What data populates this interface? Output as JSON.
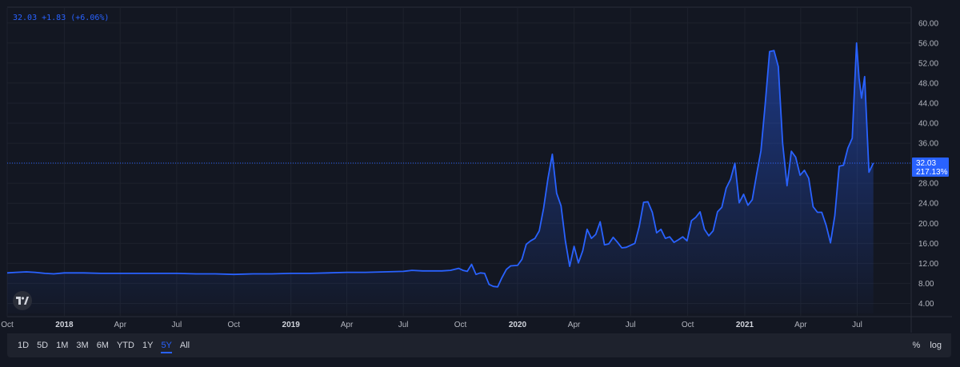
{
  "legend": {
    "text": "32.03 +1.83 (+6.06%)"
  },
  "price_tag": {
    "price": "32.03",
    "percent": "217.13%"
  },
  "colors": {
    "line": "#2962ff",
    "background": "#131722",
    "grid": "#1e222d",
    "tag": "#2962ff"
  },
  "toolbar": {
    "ranges": [
      "1D",
      "5D",
      "1M",
      "3M",
      "6M",
      "YTD",
      "1Y",
      "5Y",
      "All"
    ],
    "active_range": "5Y",
    "percent_label": "%",
    "log_label": "log"
  },
  "logo": {
    "icon": "tradingview-logo-icon"
  },
  "chart_data": {
    "type": "area",
    "y_axis": {
      "ticks": [
        4,
        8,
        12,
        16,
        20,
        24,
        28,
        32,
        36,
        40,
        44,
        48,
        52,
        56,
        60
      ],
      "tick_labels": [
        "4.00",
        "8.00",
        "12.00",
        "16.00",
        "20.00",
        "24.00",
        "28.00",
        "32.00",
        "36.00",
        "40.00",
        "44.00",
        "48.00",
        "52.00",
        "56.00",
        "60.00"
      ],
      "ylim": [
        2,
        63
      ]
    },
    "x_axis": {
      "tick_labels": [
        {
          "label": "Oct",
          "date": "2017-10-01",
          "bold": false
        },
        {
          "label": "2018",
          "date": "2018-01-01",
          "bold": true
        },
        {
          "label": "Apr",
          "date": "2018-04-01",
          "bold": false
        },
        {
          "label": "Jul",
          "date": "2018-07-01",
          "bold": false
        },
        {
          "label": "Oct",
          "date": "2018-10-01",
          "bold": false
        },
        {
          "label": "2019",
          "date": "2019-01-01",
          "bold": true
        },
        {
          "label": "Apr",
          "date": "2019-04-01",
          "bold": false
        },
        {
          "label": "Jul",
          "date": "2019-07-01",
          "bold": false
        },
        {
          "label": "Oct",
          "date": "2019-10-01",
          "bold": false
        },
        {
          "label": "2020",
          "date": "2020-01-01",
          "bold": true
        },
        {
          "label": "Apr",
          "date": "2020-04-01",
          "bold": false
        },
        {
          "label": "Jul",
          "date": "2020-07-01",
          "bold": false
        },
        {
          "label": "Oct",
          "date": "2020-10-01",
          "bold": false
        },
        {
          "label": "2021",
          "date": "2021-01-01",
          "bold": true
        },
        {
          "label": "Apr",
          "date": "2021-04-01",
          "bold": false
        },
        {
          "label": "Jul",
          "date": "2021-07-01",
          "bold": false
        }
      ],
      "xlim": [
        "2017-10-01",
        "2021-09-26"
      ]
    },
    "current_value": 32.03,
    "grid": true,
    "series": [
      {
        "points": [
          [
            "2017-10-01",
            10.1
          ],
          [
            "2017-10-15",
            10.2
          ],
          [
            "2017-11-01",
            10.3
          ],
          [
            "2017-11-15",
            10.2
          ],
          [
            "2017-12-01",
            10.0
          ],
          [
            "2017-12-15",
            9.9
          ],
          [
            "2018-01-01",
            10.1
          ],
          [
            "2018-02-01",
            10.1
          ],
          [
            "2018-03-01",
            10.0
          ],
          [
            "2018-04-01",
            10.0
          ],
          [
            "2018-05-01",
            10.0
          ],
          [
            "2018-06-01",
            10.0
          ],
          [
            "2018-07-01",
            10.0
          ],
          [
            "2018-08-01",
            9.9
          ],
          [
            "2018-09-01",
            9.9
          ],
          [
            "2018-10-01",
            9.8
          ],
          [
            "2018-11-01",
            9.9
          ],
          [
            "2018-12-01",
            9.9
          ],
          [
            "2019-01-01",
            10.0
          ],
          [
            "2019-02-01",
            10.0
          ],
          [
            "2019-03-01",
            10.1
          ],
          [
            "2019-04-01",
            10.2
          ],
          [
            "2019-05-01",
            10.2
          ],
          [
            "2019-06-01",
            10.3
          ],
          [
            "2019-07-01",
            10.4
          ],
          [
            "2019-07-15",
            10.6
          ],
          [
            "2019-08-01",
            10.5
          ],
          [
            "2019-09-01",
            10.5
          ],
          [
            "2019-09-15",
            10.6
          ],
          [
            "2019-09-28",
            11.0
          ],
          [
            "2019-10-05",
            10.6
          ],
          [
            "2019-10-12",
            10.4
          ],
          [
            "2019-10-19",
            11.8
          ],
          [
            "2019-10-26",
            9.8
          ],
          [
            "2019-11-02",
            10.1
          ],
          [
            "2019-11-09",
            10.0
          ],
          [
            "2019-11-16",
            7.8
          ],
          [
            "2019-11-23",
            7.4
          ],
          [
            "2019-11-30",
            7.3
          ],
          [
            "2019-12-07",
            9.2
          ],
          [
            "2019-12-14",
            10.8
          ],
          [
            "2019-12-21",
            11.5
          ],
          [
            "2020-01-01",
            11.6
          ],
          [
            "2020-01-08",
            12.8
          ],
          [
            "2020-01-15",
            15.8
          ],
          [
            "2020-01-22",
            16.5
          ],
          [
            "2020-01-29",
            17.0
          ],
          [
            "2020-02-05",
            18.5
          ],
          [
            "2020-02-12",
            23.0
          ],
          [
            "2020-02-19",
            29.0
          ],
          [
            "2020-02-26",
            33.8
          ],
          [
            "2020-03-04",
            26.0
          ],
          [
            "2020-03-11",
            23.5
          ],
          [
            "2020-03-18",
            16.5
          ],
          [
            "2020-03-25",
            11.4
          ],
          [
            "2020-04-01",
            15.4
          ],
          [
            "2020-04-08",
            12.1
          ],
          [
            "2020-04-15",
            14.5
          ],
          [
            "2020-04-22",
            18.8
          ],
          [
            "2020-04-29",
            17.0
          ],
          [
            "2020-05-06",
            17.8
          ],
          [
            "2020-05-13",
            20.3
          ],
          [
            "2020-05-20",
            15.7
          ],
          [
            "2020-05-27",
            15.9
          ],
          [
            "2020-06-03",
            17.2
          ],
          [
            "2020-06-10",
            16.2
          ],
          [
            "2020-06-17",
            15.1
          ],
          [
            "2020-06-24",
            15.2
          ],
          [
            "2020-07-01",
            15.6
          ],
          [
            "2020-07-08",
            16.0
          ],
          [
            "2020-07-15",
            19.4
          ],
          [
            "2020-07-22",
            24.2
          ],
          [
            "2020-07-29",
            24.3
          ],
          [
            "2020-08-05",
            22.2
          ],
          [
            "2020-08-12",
            18.1
          ],
          [
            "2020-08-19",
            18.8
          ],
          [
            "2020-08-26",
            17.0
          ],
          [
            "2020-09-02",
            17.3
          ],
          [
            "2020-09-09",
            16.2
          ],
          [
            "2020-09-16",
            16.7
          ],
          [
            "2020-09-23",
            17.3
          ],
          [
            "2020-09-30",
            16.5
          ],
          [
            "2020-10-07",
            20.5
          ],
          [
            "2020-10-14",
            21.2
          ],
          [
            "2020-10-21",
            22.3
          ],
          [
            "2020-10-28",
            18.8
          ],
          [
            "2020-11-04",
            17.5
          ],
          [
            "2020-11-11",
            18.5
          ],
          [
            "2020-11-18",
            22.3
          ],
          [
            "2020-11-25",
            23.2
          ],
          [
            "2020-12-02",
            27.0
          ],
          [
            "2020-12-09",
            28.8
          ],
          [
            "2020-12-16",
            32.0
          ],
          [
            "2020-12-23",
            24.1
          ],
          [
            "2020-12-30",
            25.8
          ],
          [
            "2021-01-06",
            23.6
          ],
          [
            "2021-01-13",
            24.7
          ],
          [
            "2021-01-20",
            29.8
          ],
          [
            "2021-01-27",
            34.5
          ],
          [
            "2021-02-03",
            44.0
          ],
          [
            "2021-02-10",
            54.3
          ],
          [
            "2021-02-17",
            54.5
          ],
          [
            "2021-02-24",
            51.3
          ],
          [
            "2021-03-03",
            36.0
          ],
          [
            "2021-03-10",
            27.5
          ],
          [
            "2021-03-17",
            34.4
          ],
          [
            "2021-03-24",
            33.2
          ],
          [
            "2021-03-31",
            29.6
          ],
          [
            "2021-04-07",
            30.6
          ],
          [
            "2021-04-14",
            29.0
          ],
          [
            "2021-04-21",
            23.3
          ],
          [
            "2021-04-28",
            22.2
          ],
          [
            "2021-05-05",
            22.2
          ],
          [
            "2021-05-12",
            19.6
          ],
          [
            "2021-05-19",
            16.1
          ],
          [
            "2021-05-26",
            21.5
          ],
          [
            "2021-06-02",
            31.4
          ],
          [
            "2021-06-09",
            31.6
          ],
          [
            "2021-06-16",
            35.0
          ],
          [
            "2021-06-23",
            37.0
          ],
          [
            "2021-06-30",
            56.0
          ],
          [
            "2021-07-04",
            49.0
          ],
          [
            "2021-07-08",
            45.0
          ],
          [
            "2021-07-13",
            49.3
          ],
          [
            "2021-07-20",
            30.2
          ],
          [
            "2021-07-27",
            32.03
          ]
        ]
      }
    ]
  }
}
